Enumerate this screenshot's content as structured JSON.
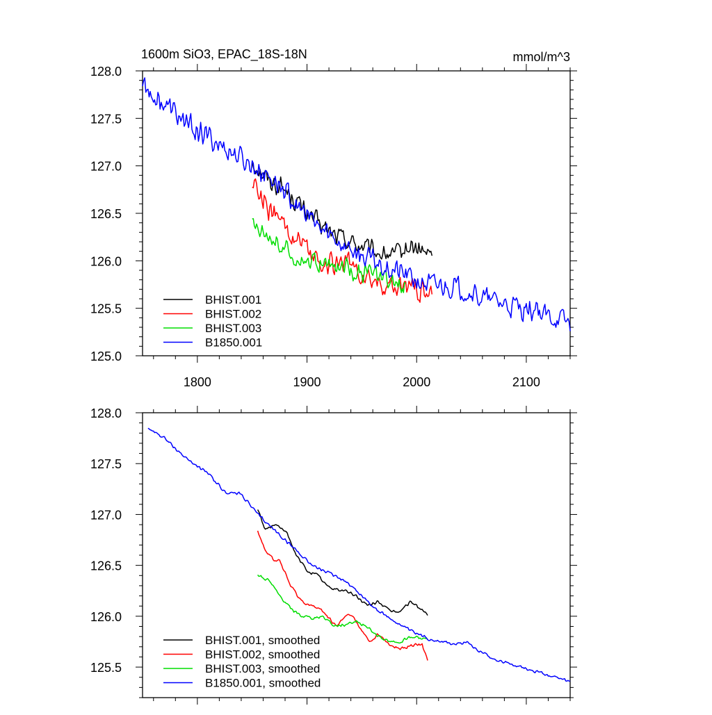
{
  "chart_data": [
    {
      "type": "line",
      "title": "1600m SiO3, EPAC_18S-18N",
      "units": "mmol/m^3",
      "xlabel": "",
      "ylabel": "",
      "xlim": [
        1750,
        2140
      ],
      "ylim": [
        125.0,
        128.0
      ],
      "xticks": [
        1800,
        1900,
        2000,
        2100
      ],
      "xtick_labels": [
        "1800",
        "1900",
        "2000",
        "2100"
      ],
      "yticks": [
        125.0,
        125.5,
        126.0,
        126.5,
        127.0,
        127.5,
        128.0
      ],
      "ytick_labels": [
        "125.0",
        "125.5",
        "126.0",
        "126.5",
        "127.0",
        "127.5",
        "128.0"
      ],
      "legend_position": "bottom-left",
      "series": [
        {
          "name": "BHIST.001",
          "color": "#000000",
          "x_start": 1850,
          "x_end": 2014,
          "anchors": [
            [
              1850,
              127.05
            ],
            [
              1865,
              126.85
            ],
            [
              1880,
              126.75
            ],
            [
              1900,
              126.5
            ],
            [
              1920,
              126.3
            ],
            [
              1940,
              126.2
            ],
            [
              1960,
              126.1
            ],
            [
              1980,
              126.05
            ],
            [
              1995,
              126.15
            ],
            [
              2014,
              126.05
            ]
          ],
          "noise": 0.13
        },
        {
          "name": "BHIST.002",
          "color": "#ff0000",
          "x_start": 1850,
          "x_end": 2014,
          "anchors": [
            [
              1850,
              126.85
            ],
            [
              1865,
              126.55
            ],
            [
              1880,
              126.35
            ],
            [
              1900,
              126.1
            ],
            [
              1920,
              125.95
            ],
            [
              1935,
              126.0
            ],
            [
              1950,
              125.85
            ],
            [
              1965,
              125.75
            ],
            [
              1980,
              125.7
            ],
            [
              1995,
              125.75
            ],
            [
              2014,
              125.6
            ]
          ],
          "noise": 0.15
        },
        {
          "name": "BHIST.003",
          "color": "#00dd00",
          "x_start": 1850,
          "x_end": 1990,
          "anchors": [
            [
              1850,
              126.4
            ],
            [
              1865,
              126.3
            ],
            [
              1880,
              126.1
            ],
            [
              1900,
              126.0
            ],
            [
              1920,
              125.95
            ],
            [
              1940,
              125.92
            ],
            [
              1960,
              125.85
            ],
            [
              1975,
              125.75
            ],
            [
              1990,
              125.75
            ]
          ],
          "noise": 0.13
        },
        {
          "name": "B1850.001",
          "color": "#0000ff",
          "x_start": 1750,
          "x_end": 2140,
          "anchors": [
            [
              1750,
              127.85
            ],
            [
              1770,
              127.65
            ],
            [
              1790,
              127.45
            ],
            [
              1810,
              127.3
            ],
            [
              1830,
              127.15
            ],
            [
              1850,
              127.0
            ],
            [
              1870,
              126.85
            ],
            [
              1890,
              126.6
            ],
            [
              1910,
              126.35
            ],
            [
              1930,
              126.2
            ],
            [
              1950,
              126.05
            ],
            [
              1970,
              125.95
            ],
            [
              1990,
              125.85
            ],
            [
              2010,
              125.75
            ],
            [
              2040,
              125.72
            ],
            [
              2060,
              125.6
            ],
            [
              2080,
              125.55
            ],
            [
              2100,
              125.5
            ],
            [
              2120,
              125.42
            ],
            [
              2140,
              125.35
            ]
          ],
          "noise": 0.15
        }
      ]
    },
    {
      "type": "line",
      "title": "",
      "xlabel": "",
      "ylabel": "",
      "xlim": [
        1750,
        2140
      ],
      "ylim": [
        125.2,
        128.0
      ],
      "xticks": [
        1800,
        1900,
        2000,
        2100
      ],
      "xtick_labels": [],
      "yticks": [
        125.5,
        126.0,
        126.5,
        127.0,
        127.5,
        128.0
      ],
      "ytick_labels": [
        "125.5",
        "126.0",
        "126.5",
        "127.0",
        "127.5",
        "128.0"
      ],
      "legend_position": "bottom-left",
      "series": [
        {
          "name": "BHIST.001, smoothed",
          "color": "#000000",
          "x_start": 1855,
          "x_end": 2010,
          "anchors": [
            [
              1855,
              127.05
            ],
            [
              1862,
              126.85
            ],
            [
              1870,
              126.9
            ],
            [
              1880,
              126.85
            ],
            [
              1890,
              126.6
            ],
            [
              1900,
              126.45
            ],
            [
              1910,
              126.4
            ],
            [
              1920,
              126.28
            ],
            [
              1935,
              126.25
            ],
            [
              1945,
              126.2
            ],
            [
              1955,
              126.1
            ],
            [
              1965,
              126.15
            ],
            [
              1975,
              126.05
            ],
            [
              1985,
              126.05
            ],
            [
              1995,
              126.15
            ],
            [
              2000,
              126.1
            ],
            [
              2010,
              126.02
            ]
          ],
          "noise": 0.02
        },
        {
          "name": "BHIST.002, smoothed",
          "color": "#ff0000",
          "x_start": 1855,
          "x_end": 2010,
          "anchors": [
            [
              1855,
              126.85
            ],
            [
              1862,
              126.65
            ],
            [
              1870,
              126.55
            ],
            [
              1875,
              126.55
            ],
            [
              1885,
              126.3
            ],
            [
              1895,
              126.15
            ],
            [
              1905,
              126.1
            ],
            [
              1915,
              126.05
            ],
            [
              1922,
              125.95
            ],
            [
              1927,
              125.9
            ],
            [
              1935,
              126.0
            ],
            [
              1940,
              126.02
            ],
            [
              1950,
              125.85
            ],
            [
              1958,
              125.75
            ],
            [
              1965,
              125.82
            ],
            [
              1975,
              125.72
            ],
            [
              1985,
              125.68
            ],
            [
              2000,
              125.72
            ],
            [
              2005,
              125.72
            ],
            [
              2010,
              125.57
            ]
          ],
          "noise": 0.02
        },
        {
          "name": "BHIST.003, smoothed",
          "color": "#00dd00",
          "x_start": 1855,
          "x_end": 2010,
          "anchors": [
            [
              1855,
              126.4
            ],
            [
              1865,
              126.35
            ],
            [
              1875,
              126.2
            ],
            [
              1885,
              126.08
            ],
            [
              1895,
              126.0
            ],
            [
              1905,
              125.98
            ],
            [
              1915,
              126.0
            ],
            [
              1925,
              125.9
            ],
            [
              1935,
              125.92
            ],
            [
              1945,
              125.95
            ],
            [
              1955,
              125.9
            ],
            [
              1965,
              125.8
            ],
            [
              1975,
              125.75
            ],
            [
              1985,
              125.75
            ],
            [
              1995,
              125.8
            ],
            [
              2005,
              125.78
            ],
            [
              2010,
              125.77
            ]
          ],
          "noise": 0.02
        },
        {
          "name": "B1850.001, smoothed",
          "color": "#0000ff",
          "x_start": 1755,
          "x_end": 2140,
          "anchors": [
            [
              1755,
              127.85
            ],
            [
              1770,
              127.75
            ],
            [
              1790,
              127.55
            ],
            [
              1810,
              127.4
            ],
            [
              1825,
              127.22
            ],
            [
              1840,
              127.2
            ],
            [
              1855,
              127.0
            ],
            [
              1870,
              126.85
            ],
            [
              1890,
              126.65
            ],
            [
              1905,
              126.5
            ],
            [
              1920,
              126.42
            ],
            [
              1935,
              126.35
            ],
            [
              1950,
              126.2
            ],
            [
              1965,
              126.05
            ],
            [
              1980,
              125.95
            ],
            [
              1995,
              125.85
            ],
            [
              2010,
              125.78
            ],
            [
              2025,
              125.75
            ],
            [
              2035,
              125.72
            ],
            [
              2045,
              125.75
            ],
            [
              2055,
              125.68
            ],
            [
              2070,
              125.58
            ],
            [
              2090,
              125.52
            ],
            [
              2105,
              125.47
            ],
            [
              2120,
              125.42
            ],
            [
              2140,
              125.35
            ]
          ],
          "noise": 0.02
        }
      ]
    }
  ]
}
